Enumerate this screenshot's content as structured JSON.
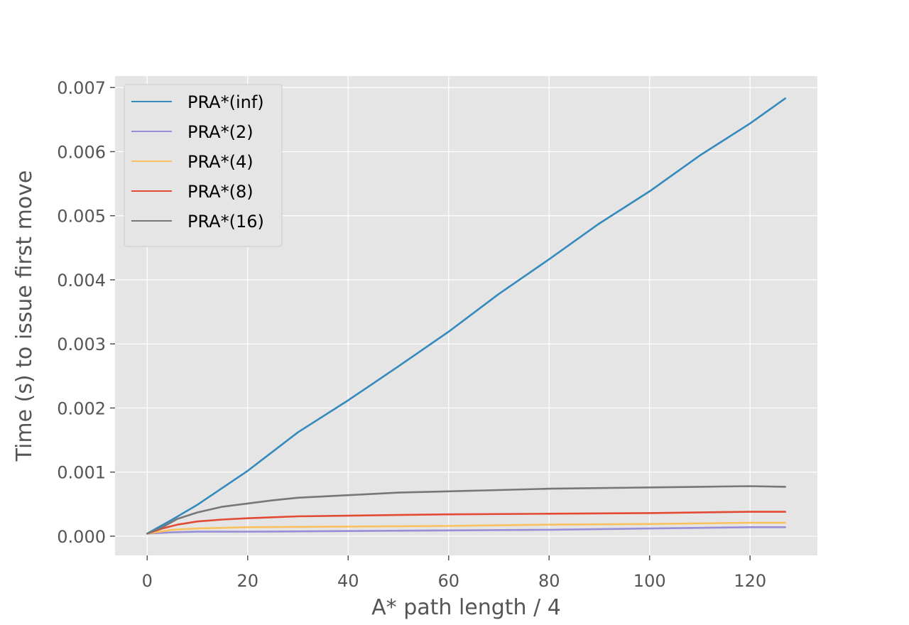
{
  "chart_data": {
    "type": "line",
    "title": "",
    "xlabel": "A* path length / 4",
    "ylabel": "Time (s) to issue first move",
    "xlim": [
      -6.4,
      133.4
    ],
    "ylim": [
      -0.0003,
      0.00718
    ],
    "xticks": [
      0,
      20,
      40,
      60,
      80,
      100,
      120
    ],
    "xtick_labels": [
      "0",
      "20",
      "40",
      "60",
      "80",
      "100",
      "120"
    ],
    "yticks": [
      0.0,
      0.001,
      0.002,
      0.003,
      0.004,
      0.005,
      0.006,
      0.007
    ],
    "ytick_labels": [
      "0.000",
      "0.001",
      "0.002",
      "0.003",
      "0.004",
      "0.005",
      "0.006",
      "0.007"
    ],
    "grid": true,
    "legend_position": "top-left",
    "background": "#e5e5e5",
    "series": [
      {
        "name": "PRA*(inf)",
        "color": "#348abd",
        "x": [
          0,
          5,
          10,
          20,
          30,
          40,
          50,
          60,
          70,
          80,
          90,
          100,
          110,
          120,
          127
        ],
        "values": [
          4e-05,
          0.00026,
          0.00049,
          0.00102,
          0.00162,
          0.00212,
          0.00265,
          0.00319,
          0.00378,
          0.00432,
          0.00488,
          0.00538,
          0.00594,
          0.00644,
          0.00683
        ]
      },
      {
        "name": "PRA*(2)",
        "color": "#988ed5",
        "x": [
          0,
          5,
          10,
          20,
          40,
          60,
          80,
          100,
          120,
          127
        ],
        "values": [
          4e-05,
          6e-05,
          7e-05,
          7e-05,
          8e-05,
          9e-05,
          0.0001,
          0.00012,
          0.00014,
          0.00014
        ]
      },
      {
        "name": "PRA*(4)",
        "color": "#fbc15e",
        "x": [
          0,
          5,
          10,
          20,
          40,
          60,
          80,
          100,
          120,
          127
        ],
        "values": [
          4e-05,
          0.0001,
          0.00012,
          0.00014,
          0.00015,
          0.00016,
          0.00018,
          0.00019,
          0.00021,
          0.00021
        ]
      },
      {
        "name": "PRA*(8)",
        "color": "#e24a33",
        "x": [
          0,
          3,
          6,
          10,
          15,
          20,
          30,
          40,
          50,
          60,
          80,
          100,
          120,
          127
        ],
        "values": [
          4e-05,
          0.00012,
          0.00018,
          0.00023,
          0.00026,
          0.00028,
          0.00031,
          0.00032,
          0.00033,
          0.00034,
          0.00035,
          0.00036,
          0.00038,
          0.00038
        ]
      },
      {
        "name": "PRA*(16)",
        "color": "#777777",
        "x": [
          0,
          3,
          6,
          10,
          15,
          20,
          25,
          30,
          40,
          50,
          60,
          70,
          80,
          90,
          100,
          110,
          120,
          127
        ],
        "values": [
          4e-05,
          0.00014,
          0.00027,
          0.00037,
          0.00046,
          0.00051,
          0.00056,
          0.0006,
          0.00064,
          0.00068,
          0.0007,
          0.00072,
          0.00074,
          0.00075,
          0.00076,
          0.00077,
          0.00078,
          0.00077
        ]
      }
    ]
  }
}
